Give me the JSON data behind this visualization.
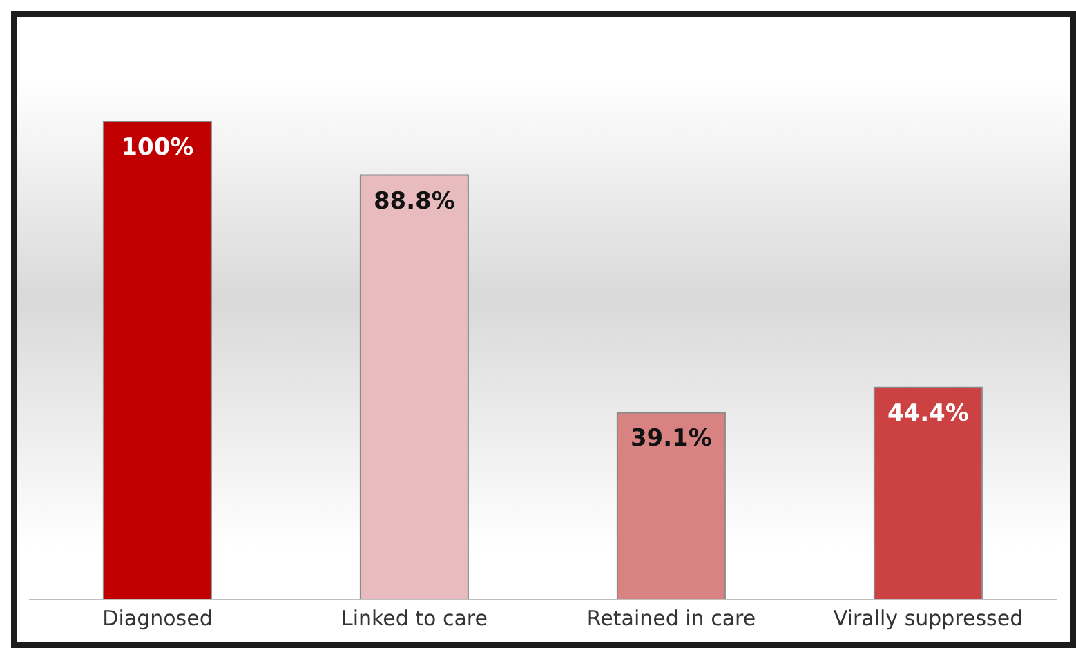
{
  "chart_data": {
    "type": "bar",
    "categories": [
      "Diagnosed",
      "Linked to care",
      "Retained in care",
      "Virally suppressed"
    ],
    "values": [
      100,
      88.8,
      39.1,
      44.4
    ],
    "colors": [
      "#c00000",
      "#e8bcbe",
      "#d98282",
      "#cc4142"
    ],
    "value_labels": [
      "100%",
      "88.8%",
      "39.1%",
      "44.4%"
    ],
    "grid": false,
    "legend": false
  }
}
